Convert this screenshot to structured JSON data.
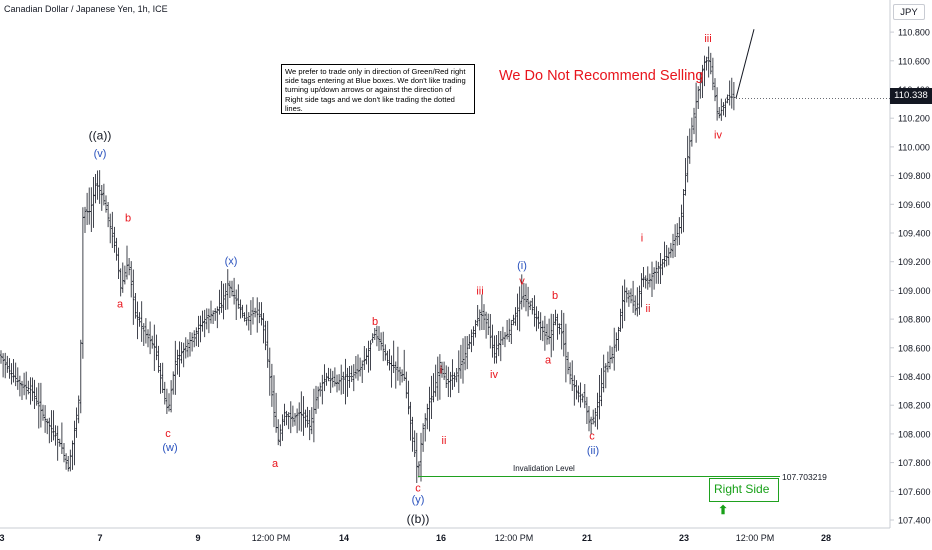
{
  "header": {
    "symbol_title": "Canadian Dollar / Japanese Yen, 1h, ICE",
    "currency": "JPY"
  },
  "note": {
    "text": "We prefer to trade only in direction of Green/Red right side tags entering at Blue boxes. We don't like trading turning up/down arrows or against the direction of Right side tags and we don't like trading the dotted lines."
  },
  "headline": "We Do Not Recommend Selling",
  "right_side": {
    "label": "Right Side",
    "arrow": "⬆"
  },
  "invalidation": {
    "label": "Invalidation Level",
    "value": "107.703219"
  },
  "last_price": "110.338",
  "colors": {
    "red": "#e8141c",
    "blue": "#2a52be",
    "black": "#131722",
    "green": "#18a018"
  },
  "chart_data": {
    "type": "ohlc",
    "y_axis_labels": [
      "110.800",
      "110.600",
      "110.400",
      "110.200",
      "110.000",
      "109.800",
      "109.600",
      "109.400",
      "109.200",
      "109.000",
      "108.800",
      "108.600",
      "108.400",
      "108.200",
      "108.000",
      "107.800",
      "107.600",
      "107.400"
    ],
    "y_range": [
      107.4,
      110.9
    ],
    "x_ticks": [
      {
        "label": "3",
        "t": 2
      },
      {
        "label": "7",
        "t": 100
      },
      {
        "label": "9",
        "t": 198
      },
      {
        "label": "12:00 PM",
        "t": 271
      },
      {
        "label": "14",
        "t": 344
      },
      {
        "label": "16",
        "t": 441
      },
      {
        "label": "12:00 PM",
        "t": 514
      },
      {
        "label": "21",
        "t": 587
      },
      {
        "label": "23",
        "t": 684
      },
      {
        "label": "12:00 PM",
        "t": 755
      },
      {
        "label": "28",
        "t": 826
      }
    ],
    "price_path": [
      [
        0,
        108.55
      ],
      [
        8,
        108.45
      ],
      [
        20,
        108.35
      ],
      [
        32,
        108.3
      ],
      [
        45,
        108.1
      ],
      [
        55,
        108.0
      ],
      [
        62,
        107.9
      ],
      [
        68,
        107.75
      ],
      [
        74,
        108.0
      ],
      [
        80,
        108.3
      ],
      [
        83,
        109.55
      ],
      [
        90,
        109.55
      ],
      [
        96,
        109.75
      ],
      [
        103,
        109.65
      ],
      [
        110,
        109.45
      ],
      [
        118,
        109.2
      ],
      [
        120,
        109.0
      ],
      [
        128,
        109.2
      ],
      [
        135,
        108.85
      ],
      [
        145,
        108.7
      ],
      [
        155,
        108.6
      ],
      [
        163,
        108.3
      ],
      [
        168,
        108.15
      ],
      [
        175,
        108.5
      ],
      [
        185,
        108.6
      ],
      [
        195,
        108.7
      ],
      [
        205,
        108.8
      ],
      [
        215,
        108.85
      ],
      [
        222,
        108.9
      ],
      [
        228,
        109.05
      ],
      [
        235,
        108.95
      ],
      [
        245,
        108.8
      ],
      [
        255,
        108.85
      ],
      [
        262,
        108.8
      ],
      [
        268,
        108.5
      ],
      [
        274,
        108.15
      ],
      [
        278,
        107.95
      ],
      [
        284,
        108.15
      ],
      [
        292,
        108.1
      ],
      [
        300,
        108.15
      ],
      [
        310,
        108.05
      ],
      [
        318,
        108.3
      ],
      [
        326,
        108.4
      ],
      [
        336,
        108.35
      ],
      [
        344,
        108.4
      ],
      [
        352,
        108.4
      ],
      [
        360,
        108.45
      ],
      [
        367,
        108.55
      ],
      [
        374,
        108.7
      ],
      [
        380,
        108.65
      ],
      [
        388,
        108.5
      ],
      [
        396,
        108.45
      ],
      [
        404,
        108.4
      ],
      [
        410,
        108.1
      ],
      [
        414,
        107.9
      ],
      [
        418,
        107.72
      ],
      [
        422,
        108.0
      ],
      [
        428,
        108.2
      ],
      [
        434,
        108.3
      ],
      [
        440,
        108.5
      ],
      [
        446,
        108.35
      ],
      [
        455,
        108.4
      ],
      [
        462,
        108.5
      ],
      [
        470,
        108.65
      ],
      [
        480,
        108.85
      ],
      [
        488,
        108.75
      ],
      [
        494,
        108.55
      ],
      [
        500,
        108.65
      ],
      [
        508,
        108.7
      ],
      [
        516,
        108.85
      ],
      [
        522,
        108.95
      ],
      [
        530,
        108.9
      ],
      [
        540,
        108.75
      ],
      [
        548,
        108.65
      ],
      [
        555,
        108.8
      ],
      [
        562,
        108.7
      ],
      [
        568,
        108.45
      ],
      [
        576,
        108.3
      ],
      [
        584,
        108.25
      ],
      [
        590,
        108.05
      ],
      [
        598,
        108.2
      ],
      [
        604,
        108.45
      ],
      [
        612,
        108.55
      ],
      [
        618,
        108.7
      ],
      [
        624,
        109.0
      ],
      [
        630,
        108.95
      ],
      [
        636,
        108.85
      ],
      [
        642,
        109.1
      ],
      [
        648,
        109.05
      ],
      [
        656,
        109.15
      ],
      [
        664,
        109.2
      ],
      [
        672,
        109.3
      ],
      [
        680,
        109.45
      ],
      [
        684,
        109.7
      ],
      [
        688,
        109.95
      ],
      [
        692,
        110.15
      ],
      [
        697,
        110.35
      ],
      [
        701,
        110.5
      ],
      [
        705,
        110.6
      ],
      [
        709,
        110.6
      ],
      [
        714,
        110.4
      ],
      [
        718,
        110.2
      ],
      [
        724,
        110.3
      ],
      [
        730,
        110.35
      ],
      [
        736,
        110.34
      ]
    ],
    "projection": [
      [
        736,
        110.34
      ],
      [
        754,
        110.82
      ]
    ],
    "invalidation_level": 107.703219,
    "labels": [
      {
        "text": "((a))",
        "t": 100,
        "y": 110.05,
        "color": "black"
      },
      {
        "text": "(v)",
        "t": 100,
        "y": 109.93,
        "color": "blue"
      },
      {
        "text": "b",
        "t": 128,
        "y": 109.48,
        "color": "red"
      },
      {
        "text": "a",
        "t": 120,
        "y": 108.88,
        "color": "red"
      },
      {
        "text": "c",
        "t": 168,
        "y": 107.98,
        "color": "red"
      },
      {
        "text": "(w)",
        "t": 170,
        "y": 107.88,
        "color": "blue"
      },
      {
        "text": "(x)",
        "t": 231,
        "y": 109.18,
        "color": "blue"
      },
      {
        "text": "a",
        "t": 275,
        "y": 107.77,
        "color": "red"
      },
      {
        "text": "b",
        "t": 375,
        "y": 108.76,
        "color": "red"
      },
      {
        "text": "i",
        "t": 441,
        "y": 108.42,
        "color": "red"
      },
      {
        "text": "ii",
        "t": 444,
        "y": 107.93,
        "color": "red"
      },
      {
        "text": "c",
        "t": 418,
        "y": 107.6,
        "color": "red"
      },
      {
        "text": "(y)",
        "t": 418,
        "y": 107.52,
        "color": "blue"
      },
      {
        "text": "((b))",
        "t": 418,
        "y": 107.38,
        "color": "black"
      },
      {
        "text": "iii",
        "t": 480,
        "y": 108.97,
        "color": "red"
      },
      {
        "text": "iv",
        "t": 494,
        "y": 108.39,
        "color": "red"
      },
      {
        "text": "(i)",
        "t": 522,
        "y": 109.15,
        "color": "blue"
      },
      {
        "text": "v",
        "t": 522,
        "y": 109.04,
        "color": "red"
      },
      {
        "text": "b",
        "t": 555,
        "y": 108.94,
        "color": "red"
      },
      {
        "text": "a",
        "t": 548,
        "y": 108.49,
        "color": "red"
      },
      {
        "text": "c",
        "t": 592,
        "y": 107.96,
        "color": "red"
      },
      {
        "text": "(ii)",
        "t": 593,
        "y": 107.86,
        "color": "blue"
      },
      {
        "text": "i",
        "t": 642,
        "y": 109.34,
        "color": "red"
      },
      {
        "text": "ii",
        "t": 648,
        "y": 108.85,
        "color": "red"
      },
      {
        "text": "iii",
        "t": 708,
        "y": 110.73,
        "color": "red"
      },
      {
        "text": "iv",
        "t": 718,
        "y": 110.06,
        "color": "red"
      }
    ]
  }
}
